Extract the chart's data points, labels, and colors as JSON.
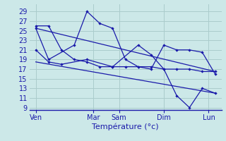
{
  "background_color": "#cce8e8",
  "grid_color": "#aacccc",
  "line_color": "#1a1aaa",
  "xlabel": "Température (°c)",
  "yticks": [
    9,
    11,
    13,
    15,
    17,
    19,
    21,
    23,
    25,
    27,
    29
  ],
  "ylim": [
    8.5,
    30.5
  ],
  "xlim": [
    0,
    30
  ],
  "xtick_labels": [
    "Ven",
    "Mar",
    "Sam",
    "Dim",
    "Lun"
  ],
  "xtick_positions": [
    1,
    10,
    14,
    21,
    28
  ],
  "series": [
    {
      "x": [
        1,
        3,
        5,
        7,
        9,
        11,
        13,
        15,
        17,
        19,
        21,
        23,
        25,
        27,
        29
      ],
      "y": [
        26,
        26,
        21,
        19,
        18.5,
        17.5,
        17.5,
        17.5,
        17.5,
        17.5,
        17,
        17,
        17,
        16.5,
        16.5
      ]
    },
    {
      "x": [
        1,
        3,
        5,
        9,
        13,
        17,
        19,
        21,
        23,
        25,
        27,
        29
      ],
      "y": [
        21,
        18.5,
        18,
        19,
        17.5,
        22,
        20,
        17,
        11.5,
        9,
        13,
        12
      ]
    },
    {
      "x": [
        1,
        3,
        7,
        9,
        11,
        13,
        15,
        17,
        19,
        21,
        23,
        25,
        27,
        29
      ],
      "y": [
        25.5,
        19,
        22,
        29,
        26.5,
        25.5,
        19,
        17.5,
        17,
        22,
        21,
        21,
        20.5,
        16
      ]
    },
    {
      "x": [
        1,
        29
      ],
      "y": [
        25.5,
        16.5
      ]
    },
    {
      "x": [
        1,
        29
      ],
      "y": [
        18.5,
        12
      ]
    }
  ]
}
